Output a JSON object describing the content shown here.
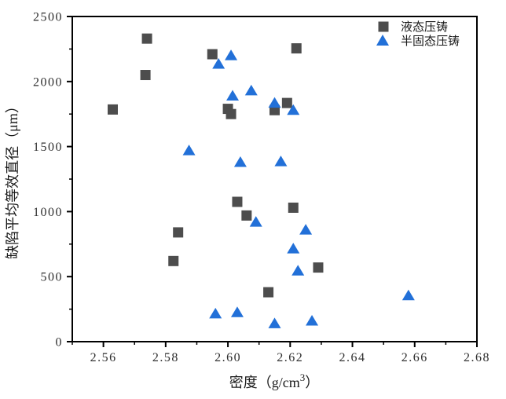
{
  "chart_data": {
    "type": "scatter",
    "title": "",
    "xlabel": "密度（g/cm³）",
    "xlabel_parts": {
      "prefix": "密度（g/cm",
      "sup": "3",
      "suffix": "）"
    },
    "ylabel": "缺陷平均等效直径（μm）",
    "xlim": [
      2.55,
      2.68
    ],
    "ylim": [
      0,
      2500
    ],
    "grid": false,
    "legend_position": "top-right-inside",
    "axis_color": "#000000",
    "x_ticks": {
      "values": [
        2.56,
        2.58,
        2.6,
        2.62,
        2.64,
        2.66,
        2.68
      ],
      "labels": [
        "2.56",
        "2.58",
        "2.60",
        "2.62",
        "2.64",
        "2.66",
        "2.68"
      ],
      "minor_values": [
        2.55,
        2.57,
        2.59,
        2.61,
        2.63,
        2.65,
        2.67
      ]
    },
    "y_ticks": {
      "values": [
        0,
        500,
        1000,
        1500,
        2000,
        2500
      ],
      "labels": [
        "0",
        "500",
        "1000",
        "1500",
        "2000",
        "2500"
      ],
      "minor_values": [
        250,
        750,
        1250,
        1750,
        2250
      ]
    },
    "series": [
      {
        "name": "液态压铸",
        "marker": "square",
        "color": "#4d4d4d",
        "points": [
          [
            2.563,
            1785
          ],
          [
            2.5735,
            2050
          ],
          [
            2.574,
            2330
          ],
          [
            2.5825,
            620
          ],
          [
            2.584,
            840
          ],
          [
            2.595,
            2210
          ],
          [
            2.6,
            1790
          ],
          [
            2.601,
            1750
          ],
          [
            2.603,
            1075
          ],
          [
            2.606,
            970
          ],
          [
            2.613,
            380
          ],
          [
            2.615,
            1780
          ],
          [
            2.619,
            1835
          ],
          [
            2.621,
            1030
          ],
          [
            2.622,
            2255
          ],
          [
            2.629,
            570
          ]
        ]
      },
      {
        "name": "半固态压铸",
        "marker": "triangle",
        "color": "#2270d8",
        "points": [
          [
            2.5875,
            1470
          ],
          [
            2.596,
            215
          ],
          [
            2.597,
            2135
          ],
          [
            2.601,
            2200
          ],
          [
            2.6015,
            1890
          ],
          [
            2.603,
            225
          ],
          [
            2.604,
            1380
          ],
          [
            2.6075,
            1930
          ],
          [
            2.609,
            920
          ],
          [
            2.615,
            1835
          ],
          [
            2.615,
            140
          ],
          [
            2.617,
            1385
          ],
          [
            2.621,
            1780
          ],
          [
            2.621,
            715
          ],
          [
            2.6225,
            545
          ],
          [
            2.625,
            860
          ],
          [
            2.627,
            160
          ],
          [
            2.658,
            355
          ]
        ]
      }
    ]
  }
}
